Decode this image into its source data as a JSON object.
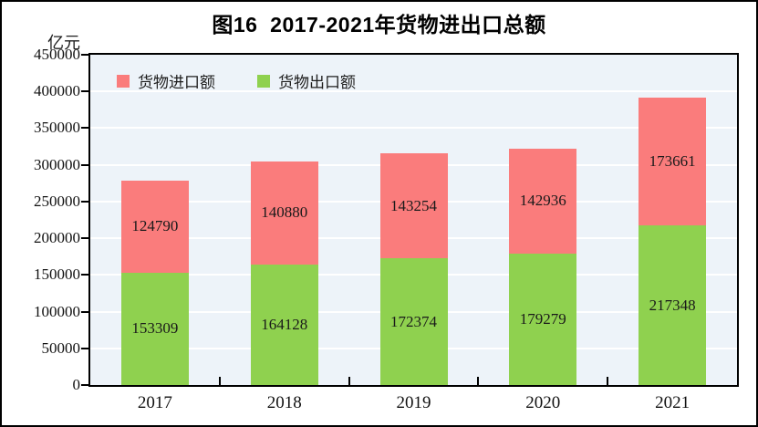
{
  "figure": {
    "title": "图16  2017-2021年货物进出口总额",
    "unit_label": "亿元"
  },
  "chart_data": {
    "type": "bar",
    "stacked": true,
    "title": "图16  2017-2021年货物进出口总额",
    "xlabel": "",
    "ylabel": "亿元",
    "categories": [
      "2017",
      "2018",
      "2019",
      "2020",
      "2021"
    ],
    "series": [
      {
        "name": "货物出口额",
        "color": "#8FD14F",
        "values": [
          153309,
          164128,
          172374,
          179279,
          217348
        ]
      },
      {
        "name": "货物进口额",
        "color": "#FA7C7C",
        "values": [
          124790,
          140880,
          143254,
          142936,
          173661
        ]
      }
    ],
    "legend_order": [
      "货物进口额",
      "货物出口额"
    ],
    "legend_position": "top-left-inside",
    "ylim": [
      0,
      450000
    ],
    "ytick_step": 50000,
    "grid": true,
    "plot_bg": "#EDF3F9",
    "gridline_color": "#FFFFFF"
  }
}
